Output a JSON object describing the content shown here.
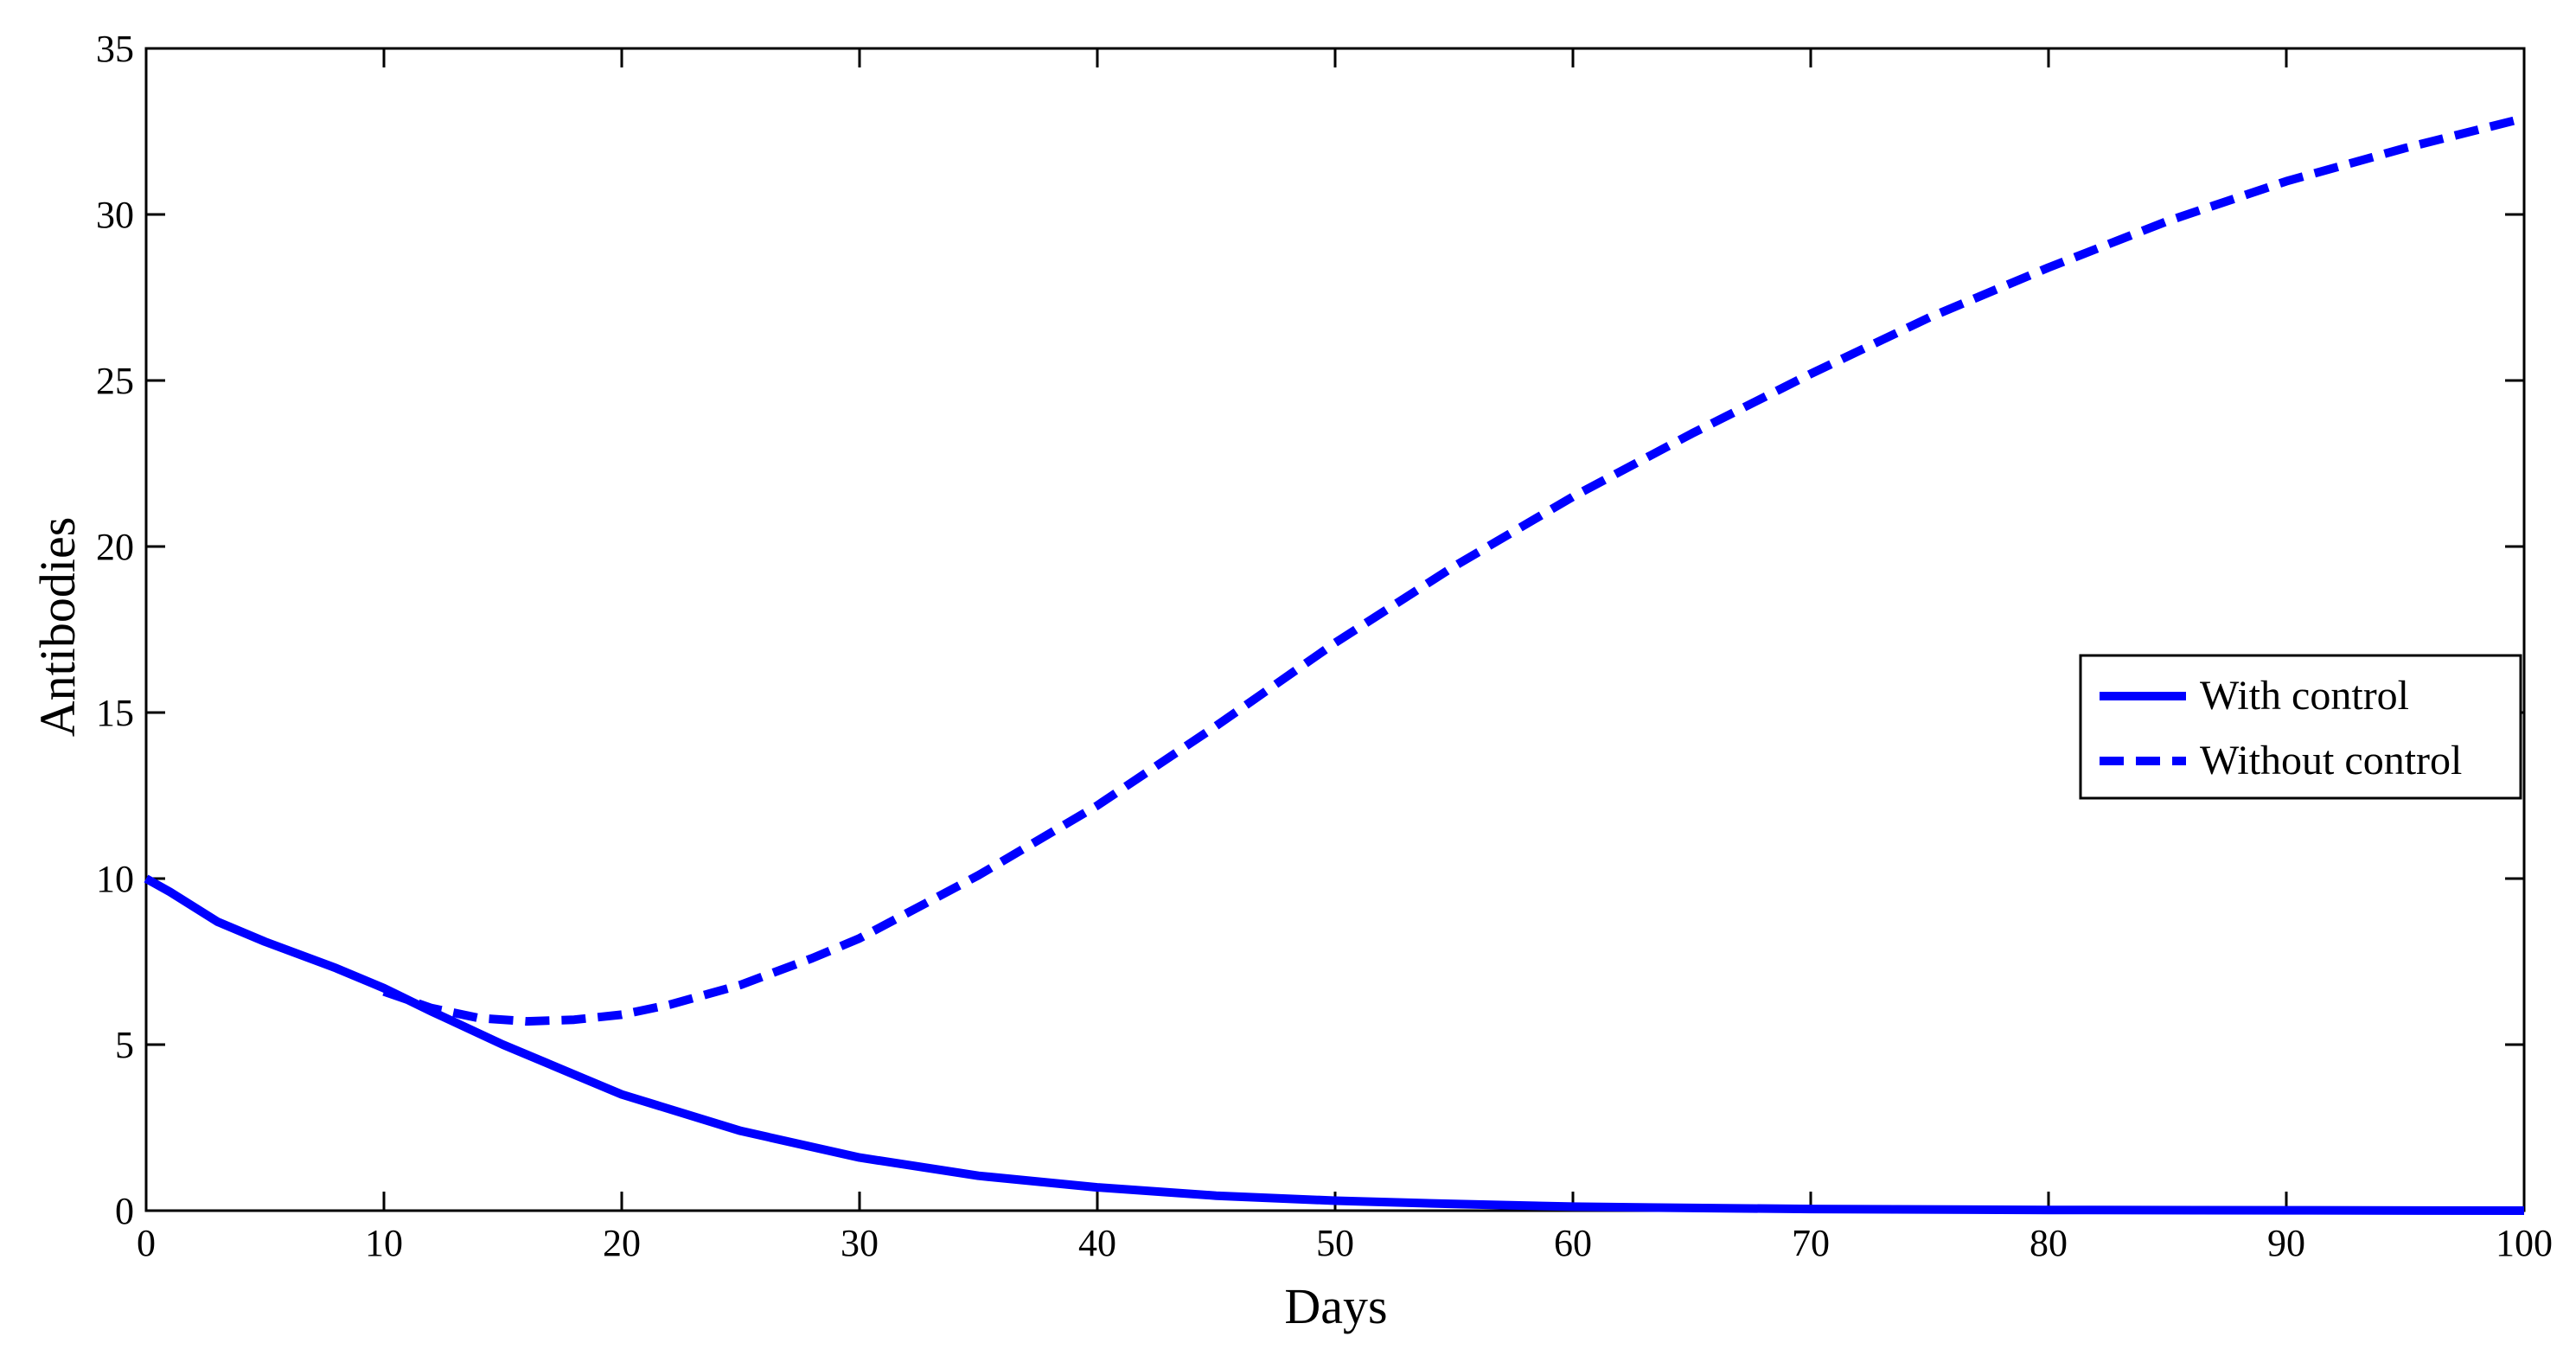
{
  "chart_data": {
    "type": "line",
    "title": "",
    "xlabel": "Days",
    "ylabel": "Antibodies",
    "xlim": [
      0,
      100
    ],
    "ylim": [
      0,
      35
    ],
    "xticks": [
      0,
      10,
      20,
      30,
      40,
      50,
      60,
      70,
      80,
      90,
      100
    ],
    "yticks": [
      0,
      5,
      10,
      15,
      20,
      25,
      30,
      35
    ],
    "grid": false,
    "legend_position": "right",
    "series_color": "#0000ff",
    "series": [
      {
        "name": "With control",
        "style": "solid",
        "x": [
          0,
          1,
          3,
          5,
          8,
          10,
          12,
          15,
          18,
          20,
          25,
          30,
          35,
          40,
          45,
          50,
          55,
          60,
          65,
          70,
          80,
          90,
          100
        ],
        "y": [
          10,
          9.6,
          8.7,
          8.1,
          7.3,
          6.7,
          6.0,
          5.0,
          4.1,
          3.5,
          2.4,
          1.6,
          1.05,
          0.7,
          0.45,
          0.3,
          0.2,
          0.12,
          0.08,
          0.05,
          0.02,
          0.01,
          0.0
        ]
      },
      {
        "name": "Without control",
        "style": "dashed",
        "x": [
          10,
          12,
          14,
          16,
          18,
          20,
          22,
          25,
          28,
          30,
          35,
          40,
          45,
          50,
          55,
          60,
          65,
          70,
          75,
          80,
          85,
          90,
          95,
          100
        ],
        "y": [
          6.6,
          6.1,
          5.8,
          5.7,
          5.75,
          5.9,
          6.2,
          6.8,
          7.6,
          8.2,
          10.1,
          12.2,
          14.6,
          17.1,
          19.4,
          21.5,
          23.4,
          25.2,
          26.9,
          28.4,
          29.8,
          31.0,
          32.0,
          32.9
        ]
      }
    ]
  }
}
